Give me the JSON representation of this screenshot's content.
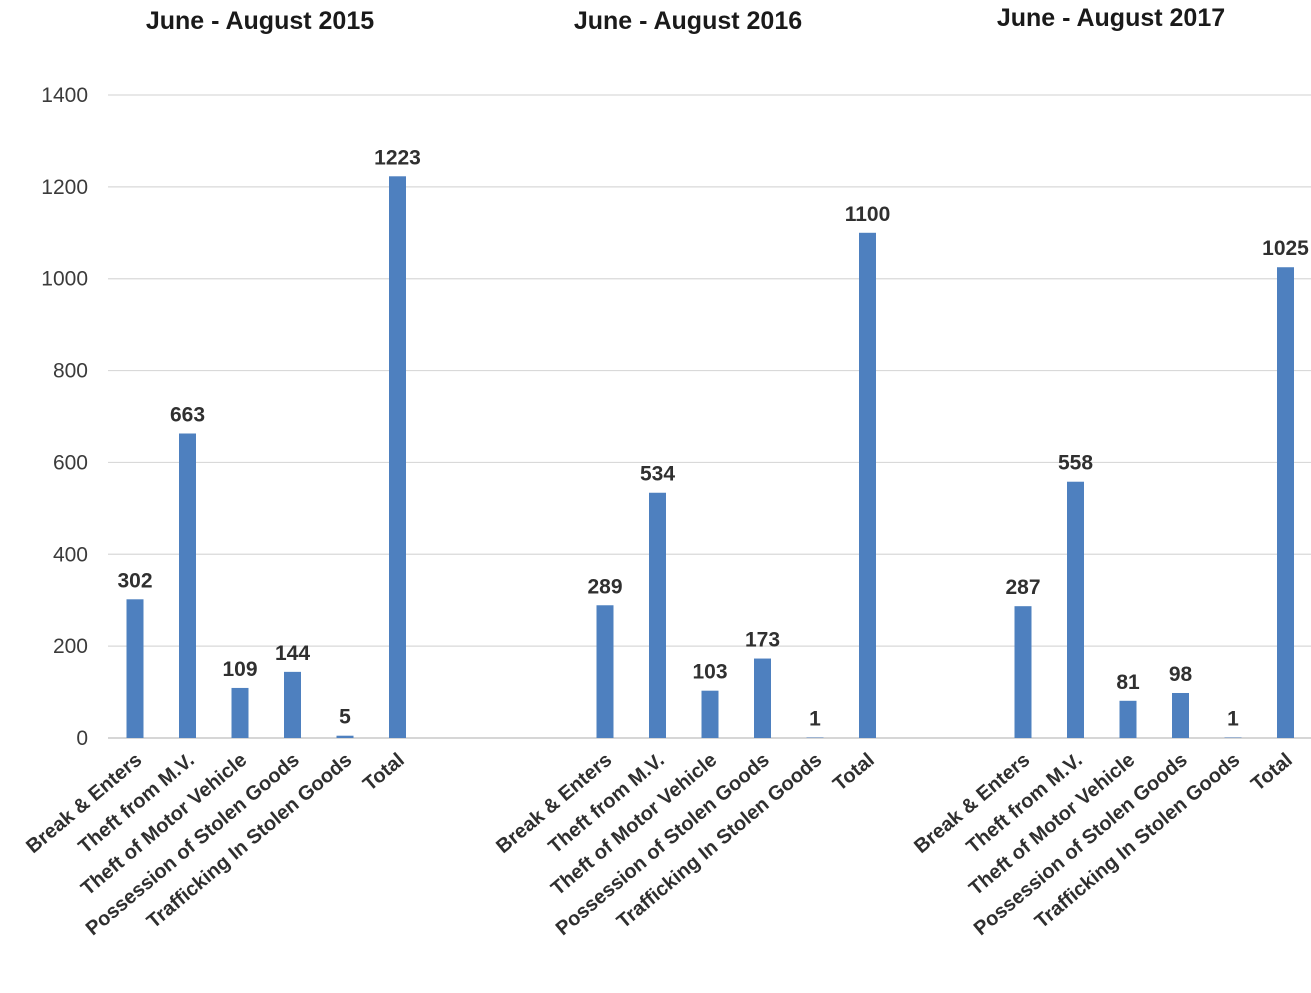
{
  "chart_data": {
    "type": "bar",
    "ylim": [
      0,
      1400
    ],
    "yticks": [
      0,
      200,
      400,
      600,
      800,
      1000,
      1200,
      1400
    ],
    "grid": true,
    "bar_color": "#4e80bf",
    "categories": [
      "Break & Enters",
      "Theft from M.V.",
      "Theft of Motor Vehicle",
      "Possession of Stolen Goods",
      "Trafficking In Stolen Goods",
      "Total"
    ],
    "groups": [
      {
        "title": "June - August 2015",
        "values": [
          302,
          663,
          109,
          144,
          5,
          1223
        ]
      },
      {
        "title": "June - August 2016",
        "values": [
          289,
          534,
          103,
          173,
          1,
          1100
        ]
      },
      {
        "title": "June - August 2017",
        "values": [
          287,
          558,
          81,
          98,
          1,
          1025
        ]
      }
    ]
  }
}
